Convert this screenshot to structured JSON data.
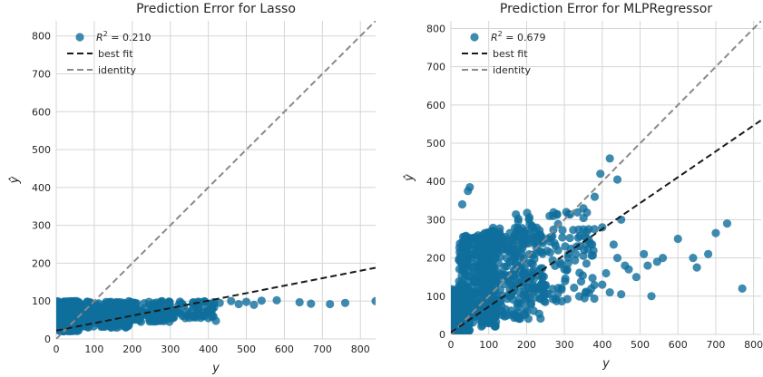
{
  "colors": {
    "background": "#ffffff",
    "plot_face": "#ffffff",
    "grid": "#d5d5d5",
    "points": "#0f6e9c",
    "best_fit": "#1a1a1a",
    "identity": "#8a8a8a"
  },
  "chart_data": [
    {
      "type": "scatter",
      "title": "Prediction Error for Lasso",
      "xlabel": "y",
      "ylabel": "ŷ",
      "xlim": [
        0,
        840
      ],
      "ylim": [
        0,
        840
      ],
      "xticks": [
        0,
        100,
        200,
        300,
        400,
        500,
        600,
        700,
        800
      ],
      "yticks": [
        0,
        100,
        200,
        300,
        400,
        500,
        600,
        700,
        800
      ],
      "grid": true,
      "legend": {
        "placement": "top-left",
        "entries": [
          {
            "kind": "marker",
            "prefix": "R",
            "sup": "2",
            "suffix": " = 0.210"
          },
          {
            "kind": "line",
            "label": "best fit"
          },
          {
            "kind": "line",
            "label": "identity"
          }
        ]
      },
      "best_fit": {
        "x": [
          0,
          840
        ],
        "y": [
          22,
          188
        ]
      },
      "identity": {
        "x": [
          0,
          840
        ],
        "y": [
          0,
          840
        ]
      },
      "cloud": [
        {
          "x": [
            0,
            60
          ],
          "y": [
            20,
            100
          ],
          "n": 320
        },
        {
          "x": [
            50,
            200
          ],
          "y": [
            30,
            100
          ],
          "n": 300
        },
        {
          "x": [
            150,
            300
          ],
          "y": [
            45,
            100
          ],
          "n": 160
        },
        {
          "x": [
            250,
            420
          ],
          "y": [
            55,
            100
          ],
          "n": 80
        }
      ],
      "points": [
        {
          "x": 430,
          "y": 95
        },
        {
          "x": 460,
          "y": 100
        },
        {
          "x": 480,
          "y": 92
        },
        {
          "x": 500,
          "y": 98
        },
        {
          "x": 520,
          "y": 90
        },
        {
          "x": 540,
          "y": 101
        },
        {
          "x": 580,
          "y": 102
        },
        {
          "x": 640,
          "y": 97
        },
        {
          "x": 670,
          "y": 93
        },
        {
          "x": 720,
          "y": 92
        },
        {
          "x": 760,
          "y": 95
        },
        {
          "x": 840,
          "y": 100
        },
        {
          "x": 420,
          "y": 48
        },
        {
          "x": 400,
          "y": 55
        },
        {
          "x": 380,
          "y": 62
        }
      ]
    },
    {
      "type": "scatter",
      "title": "Prediction Error for MLPRegressor",
      "xlabel": "y",
      "ylabel": "ŷ",
      "xlim": [
        0,
        820
      ],
      "ylim": [
        0,
        820
      ],
      "xticks": [
        0,
        100,
        200,
        300,
        400,
        500,
        600,
        700,
        800
      ],
      "yticks": [
        0,
        100,
        200,
        300,
        400,
        500,
        600,
        700,
        800
      ],
      "grid": true,
      "legend": {
        "placement": "top-left",
        "entries": [
          {
            "kind": "marker",
            "prefix": "R",
            "sup": "2",
            "suffix": " = 0.679"
          },
          {
            "kind": "line",
            "label": "best fit"
          },
          {
            "kind": "line",
            "label": "identity"
          }
        ]
      },
      "best_fit": {
        "x": [
          0,
          820
        ],
        "y": [
          5,
          560
        ]
      },
      "identity": {
        "x": [
          0,
          820
        ],
        "y": [
          0,
          820
        ]
      },
      "cloud": [
        {
          "x": [
            0,
            50
          ],
          "y": [
            0,
            120
          ],
          "n": 260
        },
        {
          "x": [
            20,
            120
          ],
          "y": [
            20,
            260
          ],
          "n": 300
        },
        {
          "x": [
            80,
            250
          ],
          "y": [
            40,
            280
          ],
          "n": 260
        },
        {
          "x": [
            150,
            380
          ],
          "y": [
            80,
            320
          ],
          "n": 140
        }
      ],
      "points": [
        {
          "x": 30,
          "y": 340
        },
        {
          "x": 50,
          "y": 385
        },
        {
          "x": 45,
          "y": 375
        },
        {
          "x": 420,
          "y": 460
        },
        {
          "x": 395,
          "y": 420
        },
        {
          "x": 440,
          "y": 405
        },
        {
          "x": 380,
          "y": 360
        },
        {
          "x": 350,
          "y": 330
        },
        {
          "x": 305,
          "y": 320
        },
        {
          "x": 700,
          "y": 265
        },
        {
          "x": 600,
          "y": 250
        },
        {
          "x": 730,
          "y": 290
        },
        {
          "x": 640,
          "y": 200
        },
        {
          "x": 650,
          "y": 175
        },
        {
          "x": 680,
          "y": 210
        },
        {
          "x": 770,
          "y": 120
        },
        {
          "x": 530,
          "y": 100
        },
        {
          "x": 440,
          "y": 200
        },
        {
          "x": 460,
          "y": 180
        },
        {
          "x": 490,
          "y": 150
        },
        {
          "x": 510,
          "y": 210
        },
        {
          "x": 545,
          "y": 190
        },
        {
          "x": 560,
          "y": 200
        },
        {
          "x": 520,
          "y": 180
        },
        {
          "x": 470,
          "y": 170
        },
        {
          "x": 420,
          "y": 110
        },
        {
          "x": 450,
          "y": 105
        },
        {
          "x": 400,
          "y": 130
        },
        {
          "x": 410,
          "y": 160
        },
        {
          "x": 430,
          "y": 235
        },
        {
          "x": 400,
          "y": 280
        },
        {
          "x": 450,
          "y": 300
        },
        {
          "x": 360,
          "y": 250
        },
        {
          "x": 330,
          "y": 210
        },
        {
          "x": 300,
          "y": 170
        }
      ]
    }
  ]
}
